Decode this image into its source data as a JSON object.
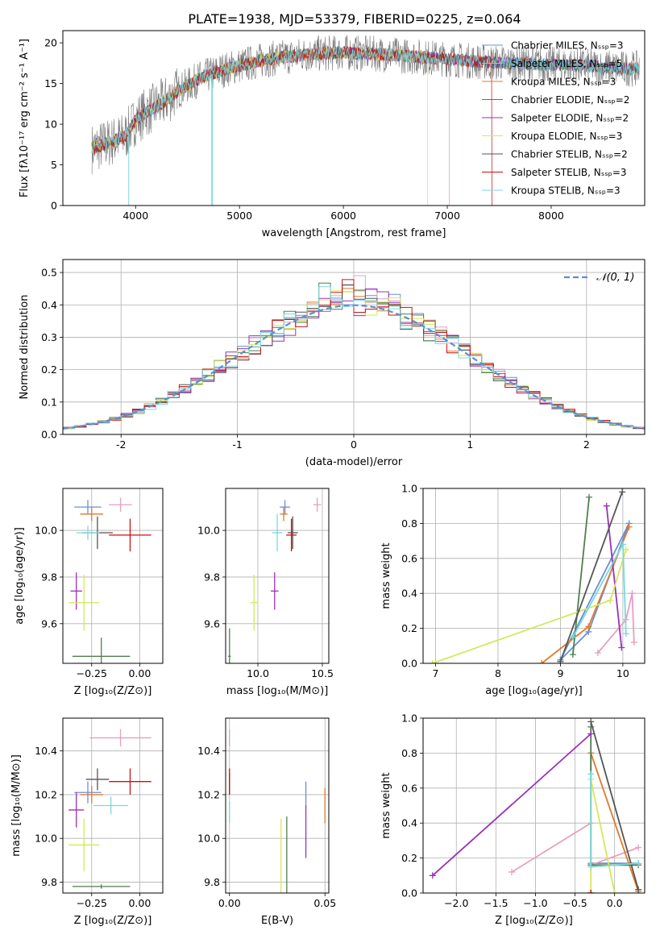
{
  "figure_title": "PLATE=1938, MJD=53379, FIBERID=0225, z=0.064",
  "palette": {
    "Chabrier MILES": "#6a8fd8",
    "Salpeter MILES": "#e5a0c0",
    "Kroupa MILES": "#e07a2a",
    "Chabrier ELODIE": "#4f7f4f",
    "Salpeter ELODIE": "#9b30b8",
    "Kroupa ELODIE": "#d4e85a",
    "Chabrier STELIB": "#555555",
    "Salpeter STELIB": "#cc1111",
    "Kroupa STELIB": "#7ad9dc"
  },
  "chart_data": [
    {
      "id": "spectrum",
      "type": "line",
      "xlabel": "wavelength [Angstrom, rest frame]",
      "ylabel": "Flux [fλ10⁻¹⁷ erg cm⁻² s⁻¹ A⁻¹]",
      "xlim": [
        3300,
        8900
      ],
      "ylim": [
        0,
        21.5
      ],
      "xticks": [
        4000,
        5000,
        6000,
        7000,
        8000
      ],
      "yticks": [
        0,
        5,
        10,
        15,
        20
      ],
      "legend_position": "right",
      "legend": [
        "Chabrier MILES, N_SSP=3",
        "Salpeter MILES, N_SSP=5",
        "Kroupa MILES, N_SSP=3",
        "Chabrier ELODIE, N_SSP=2",
        "Salpeter ELODIE, N_SSP=2",
        "Kroupa ELODIE, N_SSP=3",
        "Chabrier STELIB, N_SSP=2",
        "Salpeter STELIB, N_SSP=3",
        "Kroupa STELIB, N_SSP=3"
      ],
      "legend_colors": [
        "#6a8fd8",
        "#e5a0c0",
        "#e07a2a",
        "#4f7f4f",
        "#9b30b8",
        "#d4e85a",
        "#555555",
        "#cc1111",
        "#7ad9dc"
      ],
      "continuum_x": [
        3580,
        3700,
        3900,
        4000,
        4100,
        4250,
        4400,
        4600,
        4800,
        5000,
        5200,
        5400,
        5600,
        5800,
        6000,
        6200,
        6400,
        6600,
        6800,
        7000,
        7200,
        7400,
        7600,
        7800,
        8000,
        8200,
        8400,
        8600,
        8850
      ],
      "continuum_y": [
        7.0,
        7.5,
        8.5,
        10.5,
        11.5,
        12.5,
        14.0,
        15.5,
        16.5,
        17.2,
        17.8,
        18.2,
        18.5,
        18.7,
        18.8,
        18.7,
        18.6,
        18.4,
        18.2,
        18.0,
        17.8,
        17.6,
        17.5,
        17.4,
        17.3,
        17.2,
        17.1,
        16.9,
        16.8
      ],
      "series_x_end": [
        8850,
        7020,
        8850,
        8850,
        8850,
        6810,
        8850,
        7430,
        8850
      ]
    },
    {
      "id": "residual_histogram",
      "type": "bar",
      "xlabel": "(data-model)/error",
      "ylabel": "Normed distribution",
      "xlim": [
        -2.5,
        2.5
      ],
      "ylim": [
        0,
        0.54
      ],
      "xticks": [
        -2,
        -1,
        0,
        1,
        2
      ],
      "yticks": [
        0.0,
        0.1,
        0.2,
        0.3,
        0.4,
        0.5
      ],
      "legend": [
        "𝒩(0, 1)"
      ],
      "legend_position": "top-right",
      "grid": true,
      "bin_width": 0.1,
      "bin_start": -2.5,
      "gaussian": {
        "mean": 0,
        "sigma": 1,
        "color": "#5b8fd4"
      }
    },
    {
      "id": "age_vs_Z",
      "type": "scatter",
      "xlabel": "Z [log₁₀(Z/Z⊙)]",
      "ylabel": "age  [log₁₀(age/yr)]",
      "xlim": [
        -0.4,
        0.12
      ],
      "ylim": [
        9.43,
        10.18
      ],
      "xticks": [
        -0.25,
        0.0
      ],
      "xticklabels": [
        "−0.25",
        "0.00"
      ],
      "yticks": [
        9.6,
        9.8,
        10.0
      ],
      "grid": true,
      "points": [
        {
          "color": "#6a8fd8",
          "x": -0.27,
          "y": 10.1,
          "xerr": 0.07,
          "yerr": 0.03
        },
        {
          "color": "#e5a0c0",
          "x": -0.1,
          "y": 10.11,
          "xerr": 0.06,
          "yerr": 0.03
        },
        {
          "color": "#e07a2a",
          "x": -0.25,
          "y": 10.07,
          "xerr": 0.06,
          "yerr": 0.03
        },
        {
          "color": "#4f7f4f",
          "x": -0.2,
          "y": 9.46,
          "xerr": 0.15,
          "yerr": 0.08
        },
        {
          "color": "#9b30b8",
          "x": -0.33,
          "y": 9.74,
          "xerr": 0.03,
          "yerr": 0.08
        },
        {
          "color": "#d4e85a",
          "x": -0.29,
          "y": 9.69,
          "xerr": 0.08,
          "yerr": 0.12
        },
        {
          "color": "#555555",
          "x": -0.22,
          "y": 9.99,
          "xerr": 0.08,
          "yerr": 0.07
        },
        {
          "color": "#cc1111",
          "x": -0.05,
          "y": 9.98,
          "xerr": 0.11,
          "yerr": 0.07
        },
        {
          "color": "#7ad9dc",
          "x": -0.27,
          "y": 9.99,
          "xerr": 0.06,
          "yerr": 0.03
        }
      ]
    },
    {
      "id": "age_vs_mass",
      "type": "scatter",
      "xlabel": "mass [log₁₀(M/M⊙)]",
      "xlim": [
        9.75,
        10.55
      ],
      "ylim": [
        9.43,
        10.18
      ],
      "xticks": [
        10.0,
        10.5
      ],
      "yticks": [
        9.6,
        9.8,
        10.0
      ],
      "grid": true,
      "points": [
        {
          "color": "#6a8fd8",
          "x": 10.21,
          "y": 10.1,
          "xerr": 0.04,
          "yerr": 0.03
        },
        {
          "color": "#e5a0c0",
          "x": 10.46,
          "y": 10.11,
          "xerr": 0.03,
          "yerr": 0.03
        },
        {
          "color": "#e07a2a",
          "x": 10.2,
          "y": 10.07,
          "xerr": 0.03,
          "yerr": 0.03
        },
        {
          "color": "#4f7f4f",
          "x": 9.78,
          "y": 9.46,
          "xerr": 0.01,
          "yerr": 0.12
        },
        {
          "color": "#9b30b8",
          "x": 10.13,
          "y": 9.74,
          "xerr": 0.03,
          "yerr": 0.08
        },
        {
          "color": "#d4e85a",
          "x": 9.97,
          "y": 9.69,
          "xerr": 0.03,
          "yerr": 0.12
        },
        {
          "color": "#555555",
          "x": 10.27,
          "y": 9.99,
          "xerr": 0.04,
          "yerr": 0.07
        },
        {
          "color": "#cc1111",
          "x": 10.26,
          "y": 9.98,
          "xerr": 0.04,
          "yerr": 0.07
        },
        {
          "color": "#7ad9dc",
          "x": 10.15,
          "y": 9.99,
          "xerr": 0.04,
          "yerr": 0.08
        }
      ]
    },
    {
      "id": "weight_vs_age",
      "type": "line",
      "xlabel": "age  [log₁₀(age/yr)]",
      "ylabel": "mass weight",
      "xlim": [
        6.8,
        10.35
      ],
      "ylim": [
        0,
        1.0
      ],
      "xticks": [
        7,
        8,
        9,
        10
      ],
      "yticks": [
        0.0,
        0.2,
        0.4,
        0.6,
        0.8,
        1.0
      ],
      "grid": true,
      "series": [
        {
          "color": "#6a8fd8",
          "x": [
            9.0,
            9.45,
            10.1,
            9.0
          ],
          "y": [
            0.02,
            0.18,
            0.8,
            0.02
          ]
        },
        {
          "color": "#e5a0c0",
          "x": [
            9.6,
            10.05,
            10.15,
            10.18
          ],
          "y": [
            0.06,
            0.25,
            0.4,
            0.12
          ]
        },
        {
          "color": "#e07a2a",
          "x": [
            8.7,
            9.45,
            10.1
          ],
          "y": [
            0.0,
            0.21,
            0.78
          ]
        },
        {
          "color": "#4f7f4f",
          "x": [
            9.2,
            9.46
          ],
          "y": [
            0.05,
            0.95
          ]
        },
        {
          "color": "#9b30b8",
          "x": [
            9.74,
            9.98
          ],
          "y": [
            0.9,
            0.09
          ]
        },
        {
          "color": "#d4e85a",
          "x": [
            6.95,
            9.8,
            10.05
          ],
          "y": [
            0.0,
            0.36,
            0.65
          ]
        },
        {
          "color": "#555555",
          "x": [
            9.0,
            9.99
          ],
          "y": [
            0.01,
            0.98
          ]
        },
        {
          "color": "#7ad9dc",
          "x": [
            9.2,
            10.0,
            10.05
          ],
          "y": [
            0.15,
            0.68,
            0.17
          ]
        }
      ]
    },
    {
      "id": "mass_vs_Z",
      "type": "scatter",
      "xlabel": "Z [log₁₀(Z/Z⊙)]",
      "ylabel": "mass [log₁₀(M/M⊙)]",
      "xlim": [
        -0.4,
        0.12
      ],
      "ylim": [
        9.75,
        10.55
      ],
      "xticks": [
        -0.25,
        0.0
      ],
      "xticklabels": [
        "−0.25",
        "0.00"
      ],
      "yticks": [
        9.8,
        10.0,
        10.2,
        10.4
      ],
      "grid": true,
      "points": [
        {
          "color": "#6a8fd8",
          "x": -0.27,
          "y": 10.21,
          "xerr": 0.07,
          "yerr": 0.05
        },
        {
          "color": "#e5a0c0",
          "x": -0.1,
          "y": 10.46,
          "xerr": 0.16,
          "yerr": 0.04
        },
        {
          "color": "#e07a2a",
          "x": -0.25,
          "y": 10.2,
          "xerr": 0.06,
          "yerr": 0.04
        },
        {
          "color": "#4f7f4f",
          "x": -0.2,
          "y": 9.78,
          "xerr": 0.15,
          "yerr": 0.01
        },
        {
          "color": "#9b30b8",
          "x": -0.33,
          "y": 10.13,
          "xerr": 0.04,
          "yerr": 0.08
        },
        {
          "color": "#d4e85a",
          "x": -0.29,
          "y": 9.97,
          "xerr": 0.08,
          "yerr": 0.12
        },
        {
          "color": "#555555",
          "x": -0.22,
          "y": 10.27,
          "xerr": 0.06,
          "yerr": 0.05
        },
        {
          "color": "#cc1111",
          "x": -0.05,
          "y": 10.26,
          "xerr": 0.11,
          "yerr": 0.06
        },
        {
          "color": "#7ad9dc",
          "x": -0.15,
          "y": 10.15,
          "xerr": 0.09,
          "yerr": 0.04
        }
      ]
    },
    {
      "id": "mass_vs_ebv",
      "type": "scatter",
      "xlabel": "E(B-V)",
      "xlim": [
        -0.002,
        0.052
      ],
      "ylim": [
        9.75,
        10.55
      ],
      "xticks": [
        0.0,
        0.05
      ],
      "xticklabels": [
        "0.00",
        "0.05"
      ],
      "yticks": [
        9.8,
        10.0,
        10.2,
        10.4
      ],
      "grid": true,
      "points": [
        {
          "color": "#6a8fd8",
          "x": 0.04,
          "y": 10.2,
          "xerr": 0.0,
          "yerr": 0.06
        },
        {
          "color": "#e5a0c0",
          "x": 0.0,
          "y": 10.46,
          "xerr": 0.0,
          "yerr": 0.04
        },
        {
          "color": "#e07a2a",
          "x": 0.05,
          "y": 10.15,
          "xerr": 0.0,
          "yerr": 0.08
        },
        {
          "color": "#4f7f4f",
          "x": 0.03,
          "y": 9.9,
          "xerr": 0.0,
          "yerr": 0.2
        },
        {
          "color": "#9b30b8",
          "x": 0.04,
          "y": 10.03,
          "xerr": 0.0,
          "yerr": 0.12
        },
        {
          "color": "#d4e85a",
          "x": 0.027,
          "y": 9.92,
          "xerr": 0.0,
          "yerr": 0.17
        },
        {
          "color": "#555555",
          "x": 0.0,
          "y": 10.25,
          "xerr": 0.0,
          "yerr": 0.05
        },
        {
          "color": "#cc1111",
          "x": 0.0,
          "y": 10.26,
          "xerr": 0.0,
          "yerr": 0.06
        },
        {
          "color": "#7ad9dc",
          "x": 0.0,
          "y": 10.12,
          "xerr": 0.0,
          "yerr": 0.05
        }
      ]
    },
    {
      "id": "weight_vs_Z",
      "type": "line",
      "xlabel": "Z [log₁₀(Z/Z⊙)]",
      "ylabel": "mass weight",
      "xlim": [
        -2.42,
        0.38
      ],
      "ylim": [
        0,
        1.0
      ],
      "xticks": [
        -2.0,
        -1.5,
        -1.0,
        -0.5,
        0.0
      ],
      "xticklabels": [
        "−2.0",
        "−1.5",
        "−1.0",
        "−0.5",
        "0.0"
      ],
      "yticks": [
        0.0,
        0.2,
        0.4,
        0.6,
        0.8,
        1.0
      ],
      "grid": true,
      "series": [
        {
          "color": "#6a8fd8",
          "x": [
            -0.3,
            -0.3,
            0.3
          ],
          "y": [
            0.8,
            0.17,
            0.17
          ]
        },
        {
          "color": "#e5a0c0",
          "x": [
            -1.3,
            -0.3,
            -0.3,
            0.3
          ],
          "y": [
            0.12,
            0.4,
            0.16,
            0.26
          ]
        },
        {
          "color": "#e07a2a",
          "x": [
            -0.3,
            0.3
          ],
          "y": [
            0.8,
            0.01
          ]
        },
        {
          "color": "#4f7f4f",
          "x": [
            -0.3,
            -0.3,
            0.3
          ],
          "y": [
            0.95,
            0.16,
            0.16
          ]
        },
        {
          "color": "#9b30b8",
          "x": [
            -2.3,
            -0.3
          ],
          "y": [
            0.1,
            0.91
          ]
        },
        {
          "color": "#d4e85a",
          "x": [
            -0.3,
            -0.3,
            0.0
          ],
          "y": [
            0.0,
            0.65,
            0.0
          ]
        },
        {
          "color": "#555555",
          "x": [
            -0.3,
            0.3
          ],
          "y": [
            0.98,
            0.02
          ]
        },
        {
          "color": "#cc1111",
          "x": [
            -0.3,
            -0.3
          ],
          "y": [
            0.0,
            0.0
          ]
        },
        {
          "color": "#7ad9dc",
          "x": [
            -0.3,
            -0.3,
            0.3
          ],
          "y": [
            0.68,
            0.15,
            0.17
          ]
        }
      ]
    }
  ]
}
